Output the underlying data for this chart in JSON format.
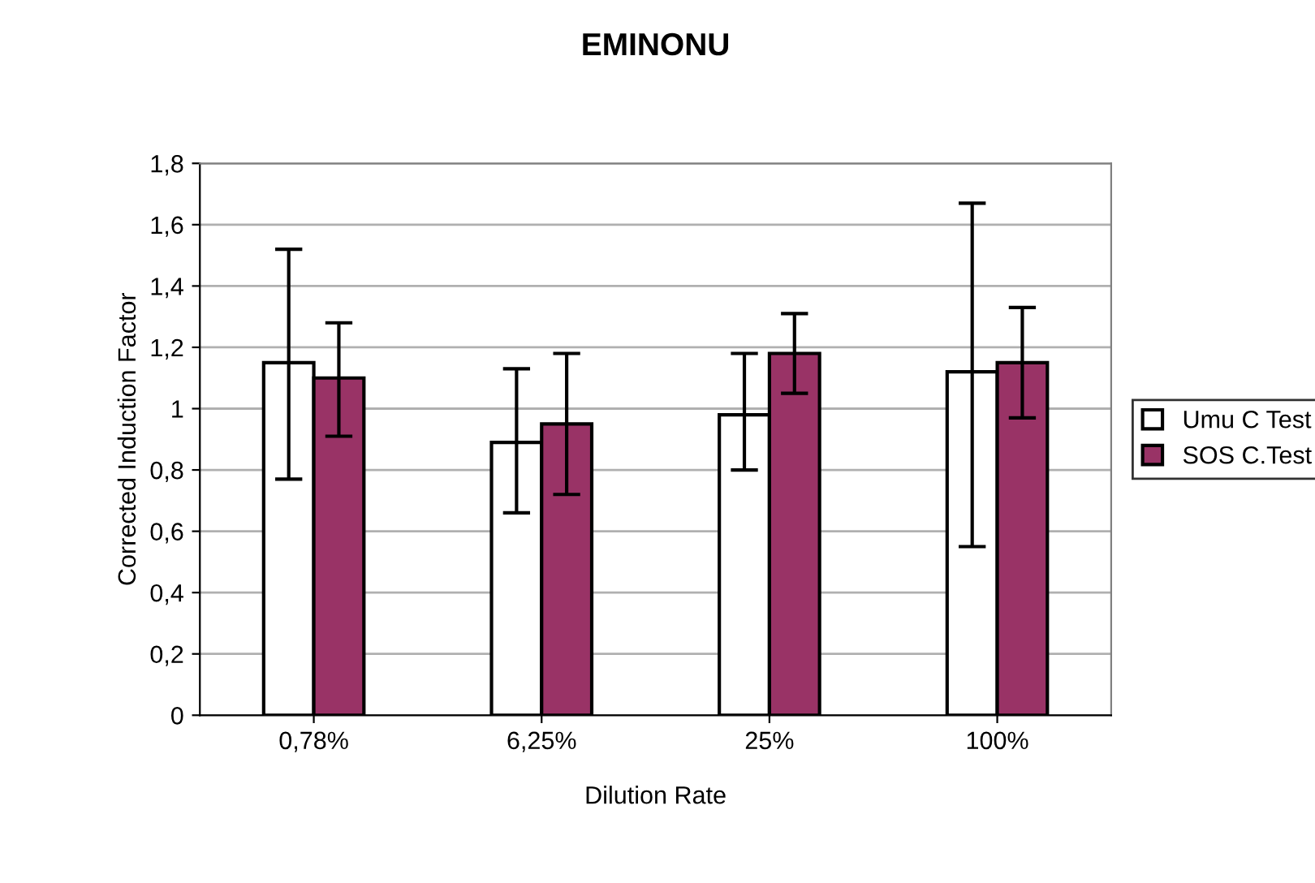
{
  "chart_data": {
    "type": "bar",
    "title": "EMINONU",
    "xlabel": "Dilution Rate",
    "ylabel": "Corrected Induction Factor",
    "categories": [
      "0,78%",
      "6,25%",
      "25%",
      "100%"
    ],
    "series": [
      {
        "name": "Umu C Test",
        "color": "#ffffff",
        "values": [
          1.15,
          0.89,
          0.98,
          1.12
        ],
        "errors": [
          [
            0.77,
            1.52
          ],
          [
            0.66,
            1.13
          ],
          [
            0.8,
            1.18
          ],
          [
            0.55,
            1.67
          ]
        ]
      },
      {
        "name": "SOS C.Test",
        "color": "#993366",
        "values": [
          1.1,
          0.95,
          1.18,
          1.15
        ],
        "errors": [
          [
            0.91,
            1.28
          ],
          [
            0.72,
            1.18
          ],
          [
            1.05,
            1.31
          ],
          [
            0.97,
            1.33
          ]
        ]
      }
    ],
    "ylim": [
      0,
      1.8
    ],
    "yticks": [
      0,
      {
        "value": 0.2,
        "label": "0,2"
      },
      {
        "value": 0.4,
        "label": "0,4"
      },
      {
        "value": 0.6,
        "label": "0,6"
      },
      {
        "value": 0.8,
        "label": "0,8"
      },
      1,
      {
        "value": 1.2,
        "label": "1,2"
      },
      {
        "value": 1.4,
        "label": "1,4"
      },
      {
        "value": 1.6,
        "label": "1,6"
      },
      {
        "value": 1.8,
        "label": "1,8"
      }
    ],
    "grid": "y",
    "legend": "right"
  }
}
